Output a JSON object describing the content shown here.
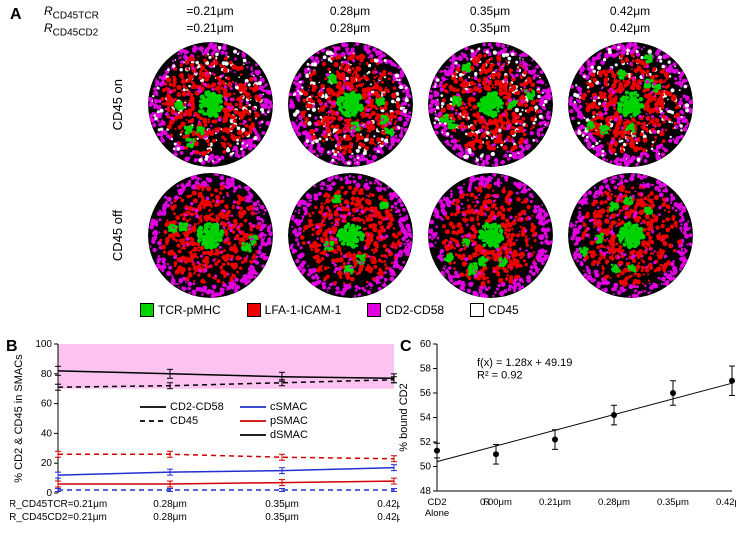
{
  "panelA": {
    "label": "A",
    "row_param1_label": "R",
    "row_param1_sub": "CD45TCR",
    "row_param2_label": "R",
    "row_param2_sub": "CD45CD2",
    "columns": [
      {
        "r1": "=0.21μm",
        "r2": "=0.21μm"
      },
      {
        "r1": "0.28μm",
        "r2": "0.28μm"
      },
      {
        "r1": "0.35μm",
        "r2": "0.35μm"
      },
      {
        "r1": "0.42μm",
        "r2": "0.42μm"
      }
    ],
    "row_labels": [
      "CD45 on",
      "CD45 off"
    ],
    "legend": [
      {
        "color": "#00d400",
        "label": "TCR-pMHC"
      },
      {
        "color": "#ee0000",
        "label": "LFA-1-ICAM-1"
      },
      {
        "color": "#e000e0",
        "label": "CD2-CD58"
      },
      {
        "color": "#ffffff",
        "label": "CD45",
        "border": true
      }
    ],
    "bg": "#000000",
    "splotch_colors": {
      "green": "#00d400",
      "red": "#ee0000",
      "magenta": "#e000e0",
      "white": "#f5f5f5"
    }
  },
  "panelB": {
    "label": "B",
    "ylabel": "% CD2 & CD45 in SMACs",
    "ylim": [
      0,
      100
    ],
    "yticks": [
      0,
      20,
      40,
      60,
      80,
      100
    ],
    "band_color": "#fcc2f0",
    "band_range": [
      70,
      100
    ],
    "x_categories": [
      "0.21",
      "0.28",
      "0.35",
      "0.42"
    ],
    "x_param1": "R_CD45TCR=",
    "x_param2": "R_CD45CD2=",
    "x_suffix": "μm",
    "legend": [
      {
        "name": "CD2-CD58",
        "color": "#000000",
        "dash": false
      },
      {
        "name": "CD45",
        "color": "#000000",
        "dash": true
      },
      {
        "name": "cSMAC",
        "color": "#2030d0",
        "dash": false
      },
      {
        "name": "pSMAC",
        "color": "#d00000",
        "dash": false
      },
      {
        "name": "dSMAC",
        "color": "#000000",
        "dash": false
      }
    ],
    "series": [
      {
        "name": "cd2-dsmac",
        "color": "#000000",
        "dash": false,
        "y": [
          82,
          80,
          78,
          77
        ],
        "err": [
          3,
          3,
          3,
          3
        ]
      },
      {
        "name": "cd45-dsmac",
        "color": "#000000",
        "dash": true,
        "y": [
          71,
          72,
          74,
          76
        ],
        "err": [
          2,
          2,
          2,
          2
        ]
      },
      {
        "name": "cd45-psmac",
        "color": "#d00000",
        "dash": true,
        "y": [
          26,
          26,
          24,
          23
        ],
        "err": [
          2,
          2,
          2,
          2
        ]
      },
      {
        "name": "cd2-csmac",
        "color": "#2030d0",
        "dash": false,
        "y": [
          12,
          14,
          15,
          17
        ],
        "err": [
          2,
          2,
          2,
          2
        ]
      },
      {
        "name": "cd2-psmac",
        "color": "#d00000",
        "dash": false,
        "y": [
          6,
          6,
          7,
          8
        ],
        "err": [
          2,
          2,
          2,
          2
        ]
      },
      {
        "name": "cd45-csmac",
        "color": "#2030d0",
        "dash": true,
        "y": [
          2,
          2,
          2,
          2
        ],
        "err": [
          1,
          1,
          1,
          1
        ]
      }
    ],
    "label_fontsize": 11,
    "tick_fontsize": 10
  },
  "panelC": {
    "label": "C",
    "ylabel": "% bound CD2",
    "ylim": [
      48,
      60
    ],
    "yticks": [
      48,
      50,
      52,
      54,
      56,
      58,
      60
    ],
    "x_categories": [
      "CD2\nAlone",
      "0.00μm",
      "0.21μm",
      "0.28μm",
      "0.35μm",
      "0.42μm"
    ],
    "x_prefix1": "R_CD45TCR=",
    "x_prefix2": "R_CD45CD2=",
    "points": [
      {
        "x": 0,
        "y": 51.3,
        "err": 0.6
      },
      {
        "x": 1,
        "y": 51.0,
        "err": 0.8
      },
      {
        "x": 2,
        "y": 52.2,
        "err": 0.8
      },
      {
        "x": 3,
        "y": 54.2,
        "err": 0.8
      },
      {
        "x": 4,
        "y": 56.0,
        "err": 1.0
      },
      {
        "x": 5,
        "y": 57.0,
        "err": 1.2
      }
    ],
    "fit_line": {
      "x0": 0,
      "y0": 50.4,
      "x1": 5,
      "y1": 56.8
    },
    "fit_text": "f(x) = 1.28x + 49.19",
    "r2_text": "R² = 0.92",
    "point_color": "#000000",
    "label_fontsize": 11,
    "tick_fontsize": 10
  }
}
